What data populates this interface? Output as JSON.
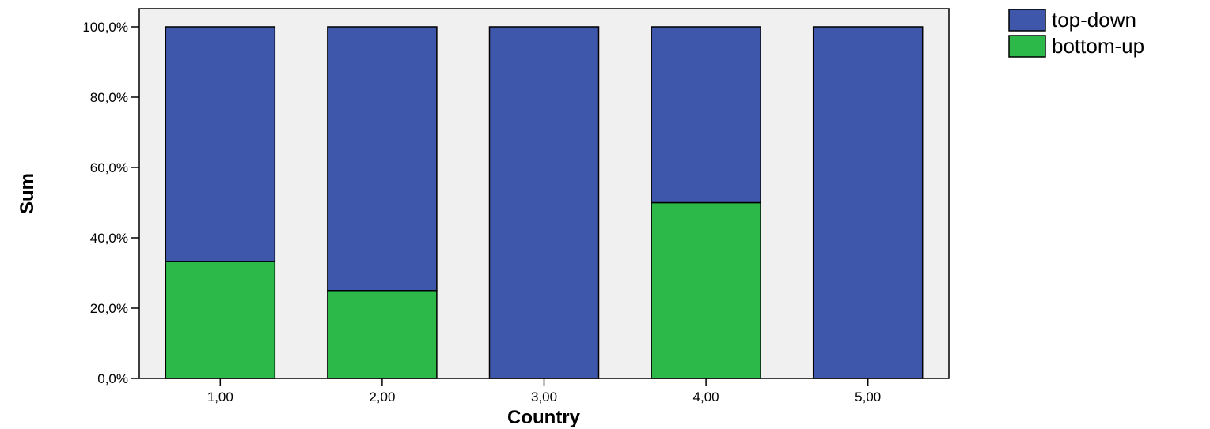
{
  "chart_data": {
    "type": "bar",
    "stacked": true,
    "title": "",
    "xlabel": "Country",
    "ylabel": "Sum",
    "categories": [
      "1,00",
      "2,00",
      "3,00",
      "4,00",
      "5,00"
    ],
    "series": [
      {
        "name": "bottom-up",
        "color": "#2db84a",
        "values": [
          33.3,
          25.0,
          0.0,
          50.0,
          0.0
        ]
      },
      {
        "name": "top-down",
        "color": "#3f57aa",
        "values": [
          66.7,
          75.0,
          100.0,
          50.0,
          100.0
        ]
      }
    ],
    "ylim": [
      0,
      100
    ],
    "yticks": [
      0,
      20,
      40,
      60,
      80,
      100
    ],
    "ytick_labels": [
      "0,0%",
      "20,0%",
      "40,0%",
      "60,0%",
      "80,0%",
      "100,0%"
    ],
    "legend_order": [
      "top-down",
      "bottom-up"
    ],
    "legend_position": "top-right",
    "grid": false,
    "plot_background": "#f0f0f0"
  }
}
